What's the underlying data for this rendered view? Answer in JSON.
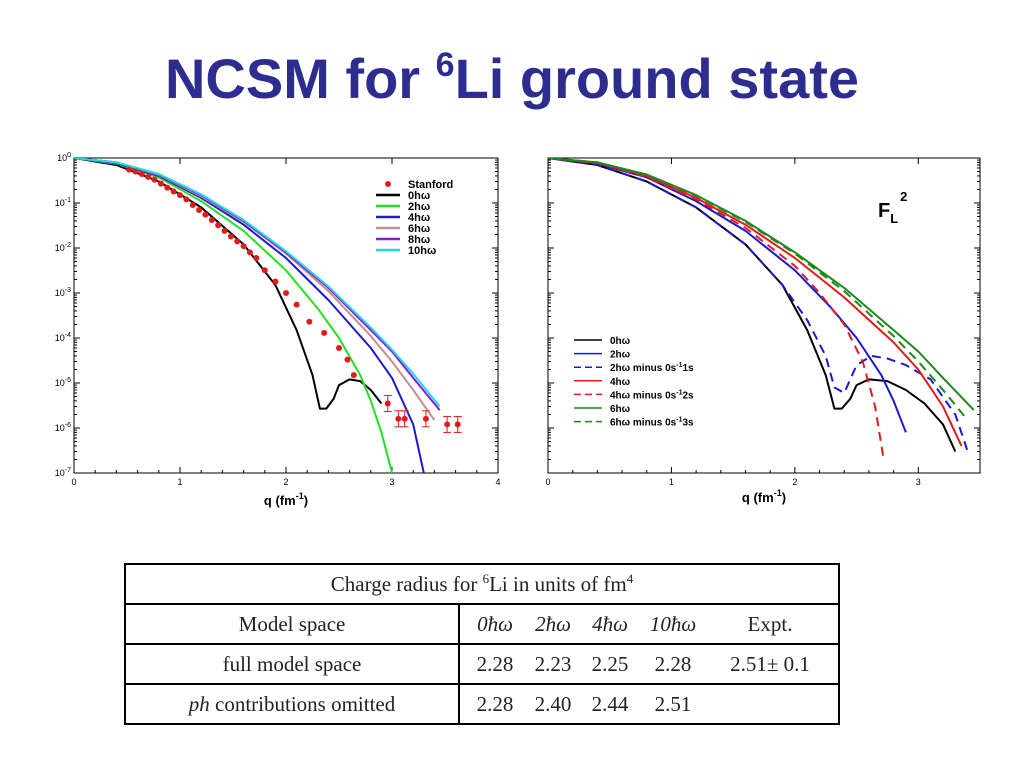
{
  "slide": {
    "title_prefix": "NCSM for ",
    "title_sup": "6",
    "title_suffix": "Li ground state"
  },
  "chart_data": [
    {
      "type": "line",
      "name_ref": "left",
      "xlabel": "q (fm",
      "xlabel_sup": "-1",
      "xlabel_end": ")",
      "xlim": [
        0,
        4
      ],
      "ylim": [
        1e-07,
        1
      ],
      "yscale": "log",
      "x_ticks": [
        "0",
        "1",
        "2",
        "3",
        "4"
      ],
      "y_ticks": [
        {
          "base": "10",
          "exp": "0"
        },
        {
          "base": "10",
          "exp": "-1"
        },
        {
          "base": "10",
          "exp": "-2"
        },
        {
          "base": "10",
          "exp": "-3"
        },
        {
          "base": "10",
          "exp": "-4"
        },
        {
          "base": "10",
          "exp": "-5"
        },
        {
          "base": "10",
          "exp": "-6"
        },
        {
          "base": "10",
          "exp": "-7"
        }
      ],
      "legend_position": "top-right",
      "points": {
        "name": "Stanford",
        "color": "#e41a1a",
        "x": [
          0.52,
          0.58,
          0.64,
          0.7,
          0.76,
          0.82,
          0.88,
          0.94,
          1.0,
          1.06,
          1.12,
          1.18,
          1.24,
          1.3,
          1.36,
          1.42,
          1.48,
          1.54,
          1.6,
          1.66,
          1.72,
          1.8,
          1.9,
          2.0,
          2.1,
          2.22,
          2.36,
          2.5,
          2.58,
          2.64,
          2.96,
          3.06,
          3.12,
          3.32,
          3.52,
          3.62
        ],
        "y": [
          0.55,
          0.5,
          0.44,
          0.38,
          0.33,
          0.27,
          0.22,
          0.18,
          0.15,
          0.12,
          0.09,
          0.07,
          0.055,
          0.042,
          0.032,
          0.024,
          0.018,
          0.014,
          0.011,
          0.008,
          0.006,
          0.0032,
          0.0018,
          0.001,
          0.00055,
          0.00023,
          0.00013,
          6e-05,
          3.3e-05,
          1.5e-05,
          3.5e-06,
          1.6e-06,
          1.6e-06,
          1.6e-06,
          1.2e-06,
          1.2e-06
        ]
      },
      "series": [
        {
          "name": "0hω",
          "color": "#000000",
          "x": [
            0,
            0.4,
            0.8,
            1.2,
            1.6,
            1.9,
            2.1,
            2.25,
            2.32,
            2.38,
            2.45,
            2.5,
            2.6,
            2.7,
            2.8,
            2.9
          ],
          "y": [
            1,
            0.7,
            0.3,
            0.08,
            0.012,
            0.0015,
            0.00015,
            1.5e-05,
            2.7e-06,
            2.7e-06,
            4.5e-06,
            9e-06,
            1.2e-05,
            1.1e-05,
            7e-06,
            3.5e-06
          ]
        },
        {
          "name": "2hω",
          "color": "#22e022",
          "x": [
            0,
            0.4,
            0.8,
            1.2,
            1.6,
            2.0,
            2.3,
            2.5,
            2.7,
            2.8,
            2.9,
            3.0
          ],
          "y": [
            1,
            0.75,
            0.37,
            0.11,
            0.024,
            0.0032,
            0.00045,
            0.0001,
            1.5e-05,
            4e-06,
            8e-07,
            1e-07
          ]
        },
        {
          "name": "4hω",
          "color": "#1a1ad0",
          "x": [
            0,
            0.4,
            0.8,
            1.2,
            1.6,
            2.0,
            2.4,
            2.8,
            3.0,
            3.2,
            3.3
          ],
          "y": [
            1,
            0.78,
            0.4,
            0.13,
            0.033,
            0.006,
            0.0007,
            6e-05,
            1.3e-05,
            1.2e-06,
            1e-07
          ]
        },
        {
          "name": "6hω",
          "color": "#c09090",
          "x": [
            0,
            0.4,
            0.8,
            1.2,
            1.6,
            2.0,
            2.4,
            2.8,
            3.0,
            3.2,
            3.4
          ],
          "y": [
            1,
            0.8,
            0.42,
            0.14,
            0.038,
            0.0075,
            0.0011,
            0.00011,
            3e-05,
            7e-06,
            1.5e-06
          ]
        },
        {
          "name": "8hω",
          "color": "#8a1ad0",
          "x": [
            0,
            0.4,
            0.8,
            1.2,
            1.6,
            2.0,
            2.4,
            2.8,
            3.0,
            3.2,
            3.45
          ],
          "y": [
            1,
            0.8,
            0.43,
            0.15,
            0.04,
            0.008,
            0.0013,
            0.00015,
            5e-05,
            1.3e-05,
            2.5e-06
          ]
        },
        {
          "name": "10hω",
          "color": "#22d8e8",
          "x": [
            0,
            0.4,
            0.8,
            1.2,
            1.6,
            2.0,
            2.4,
            2.8,
            3.0,
            3.2,
            3.45
          ],
          "y": [
            1,
            0.8,
            0.44,
            0.155,
            0.042,
            0.0085,
            0.0014,
            0.00017,
            5.5e-05,
            1.6e-05,
            3e-06
          ]
        }
      ]
    },
    {
      "type": "line",
      "name_ref": "right",
      "annotation": "F",
      "annotation_sub": "L",
      "annotation_sup": "2",
      "xlabel": "q (fm",
      "xlabel_sup": "-1",
      "xlabel_end": ")",
      "xlim": [
        0,
        3.5
      ],
      "ylim": [
        1e-07,
        1
      ],
      "yscale": "log",
      "x_ticks": [
        "0",
        "1",
        "2",
        "3"
      ],
      "legend_position": "bottom-left",
      "series": [
        {
          "name": "0hω",
          "dash": false,
          "color": "#000000",
          "x": [
            0,
            0.4,
            0.8,
            1.2,
            1.6,
            1.9,
            2.1,
            2.25,
            2.32,
            2.38,
            2.45,
            2.5,
            2.6,
            2.75,
            2.9,
            3.05,
            3.2,
            3.3
          ],
          "y": [
            1,
            0.7,
            0.3,
            0.08,
            0.012,
            0.0015,
            0.00015,
            1.5e-05,
            2.7e-06,
            2.7e-06,
            4.5e-06,
            9e-06,
            1.2e-05,
            1.1e-05,
            7e-06,
            3.5e-06,
            1.2e-06,
            3e-07
          ]
        },
        {
          "name": "2hω",
          "dash": false,
          "color": "#1a1ad0",
          "x": [
            0,
            0.4,
            0.8,
            1.2,
            1.6,
            2.0,
            2.3,
            2.5,
            2.7,
            2.8,
            2.9
          ],
          "y": [
            1,
            0.75,
            0.37,
            0.11,
            0.024,
            0.0032,
            0.00045,
            0.0001,
            1.5e-05,
            4e-06,
            8e-07
          ]
        },
        {
          "name": "2hω minus 0s",
          "name_sup": "-1",
          "name_end": "1s",
          "dash": true,
          "color": "#1a1ad0",
          "x": [
            0,
            0.4,
            0.8,
            1.2,
            1.6,
            1.9,
            2.1,
            2.25,
            2.32,
            2.4,
            2.5,
            2.62,
            2.75,
            2.9,
            3.1,
            3.3,
            3.4
          ],
          "y": [
            1,
            0.7,
            0.3,
            0.08,
            0.012,
            0.0015,
            0.00025,
            4e-05,
            8e-06,
            6e-06,
            2.5e-05,
            4e-05,
            3.5e-05,
            2.5e-05,
            1.2e-05,
            2e-06,
            3e-07
          ]
        },
        {
          "name": "4hω",
          "dash": false,
          "color": "#e41a1a",
          "x": [
            0,
            0.4,
            0.8,
            1.2,
            1.6,
            2.0,
            2.4,
            2.8,
            3.0,
            3.2,
            3.35
          ],
          "y": [
            1,
            0.78,
            0.4,
            0.13,
            0.033,
            0.006,
            0.0008,
            8e-05,
            2e-05,
            3e-06,
            4e-07
          ]
        },
        {
          "name": "4hω minus 0s",
          "name_sup": "-1",
          "name_end": "2s",
          "dash": true,
          "color": "#e41a1a",
          "x": [
            0,
            0.4,
            0.8,
            1.2,
            1.6,
            2.0,
            2.2,
            2.4,
            2.55,
            2.65,
            2.72
          ],
          "y": [
            1,
            0.77,
            0.38,
            0.12,
            0.028,
            0.004,
            0.001,
            0.0002,
            3e-05,
            3e-06,
            2e-07
          ]
        },
        {
          "name": "6hω",
          "dash": false,
          "color": "#1a8a1a",
          "x": [
            0,
            0.4,
            0.8,
            1.2,
            1.6,
            2.0,
            2.4,
            2.8,
            3.0,
            3.2,
            3.45
          ],
          "y": [
            1,
            0.8,
            0.43,
            0.15,
            0.04,
            0.008,
            0.0013,
            0.00015,
            5e-05,
            1.3e-05,
            2.5e-06
          ]
        },
        {
          "name": "6hω minus 0s",
          "name_sup": "-1",
          "name_end": "3s",
          "dash": true,
          "color": "#1a8a1a",
          "x": [
            0,
            0.4,
            0.8,
            1.2,
            1.6,
            2.0,
            2.4,
            2.8,
            3.0,
            3.2,
            3.4
          ],
          "y": [
            1,
            0.8,
            0.42,
            0.145,
            0.038,
            0.0075,
            0.0011,
            0.00011,
            3e-05,
            7e-06,
            1.5e-06
          ]
        }
      ]
    }
  ],
  "table": {
    "title_prefix": "Charge radius for ",
    "title_sup": "6",
    "title_mid": "Li in units of fm",
    "title_sup2": "4",
    "header_label": "Model space",
    "header_values": [
      "0ħω",
      "2ħω",
      "4ħω",
      "10ħω",
      "Expt."
    ],
    "rows": [
      {
        "label_italic": "",
        "label": "full model space",
        "values": [
          "2.28",
          "2.23",
          "2.25",
          "2.28",
          "2.51± 0.1"
        ]
      },
      {
        "label_italic": "ph",
        "label": " contributions omitted",
        "values": [
          "2.28",
          "2.40",
          "2.44",
          "2.51",
          ""
        ]
      }
    ]
  }
}
